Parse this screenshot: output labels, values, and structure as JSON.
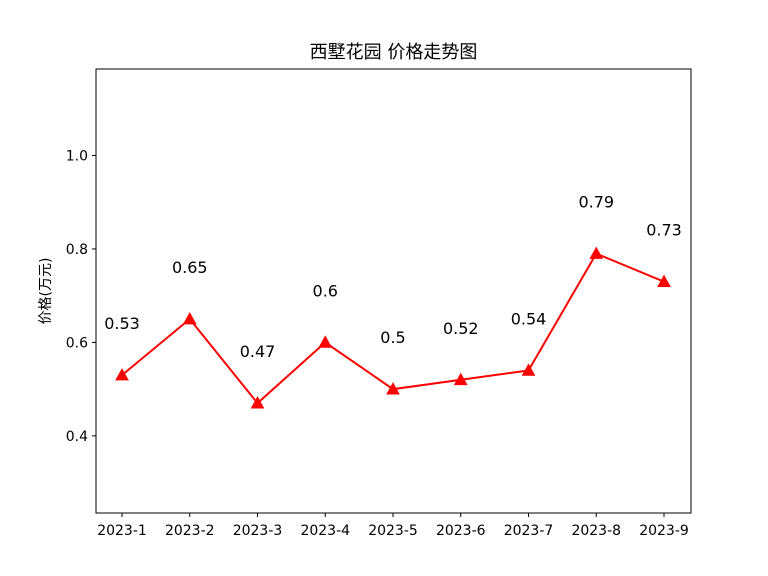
{
  "chart_data": {
    "type": "line",
    "title": "西墅花园 价格走势图",
    "xlabel": "",
    "ylabel": "价格(万元)",
    "categories": [
      "2023-1",
      "2023-2",
      "2023-3",
      "2023-4",
      "2023-5",
      "2023-6",
      "2023-7",
      "2023-8",
      "2023-9"
    ],
    "values": [
      0.53,
      0.65,
      0.47,
      0.6,
      0.5,
      0.52,
      0.54,
      0.79,
      0.73
    ],
    "data_labels": [
      "0.53",
      "0.65",
      "0.47",
      "0.6",
      "0.5",
      "0.52",
      "0.54",
      "0.79",
      "0.73"
    ],
    "ylim": [
      0.235,
      1.185
    ],
    "yticks": [
      0.4,
      0.6,
      0.8,
      1.0
    ],
    "ytick_labels": [
      "0.4",
      "0.6",
      "0.8",
      "1.0"
    ],
    "grid": false,
    "line_color": "#ff0000",
    "marker": "triangle"
  }
}
